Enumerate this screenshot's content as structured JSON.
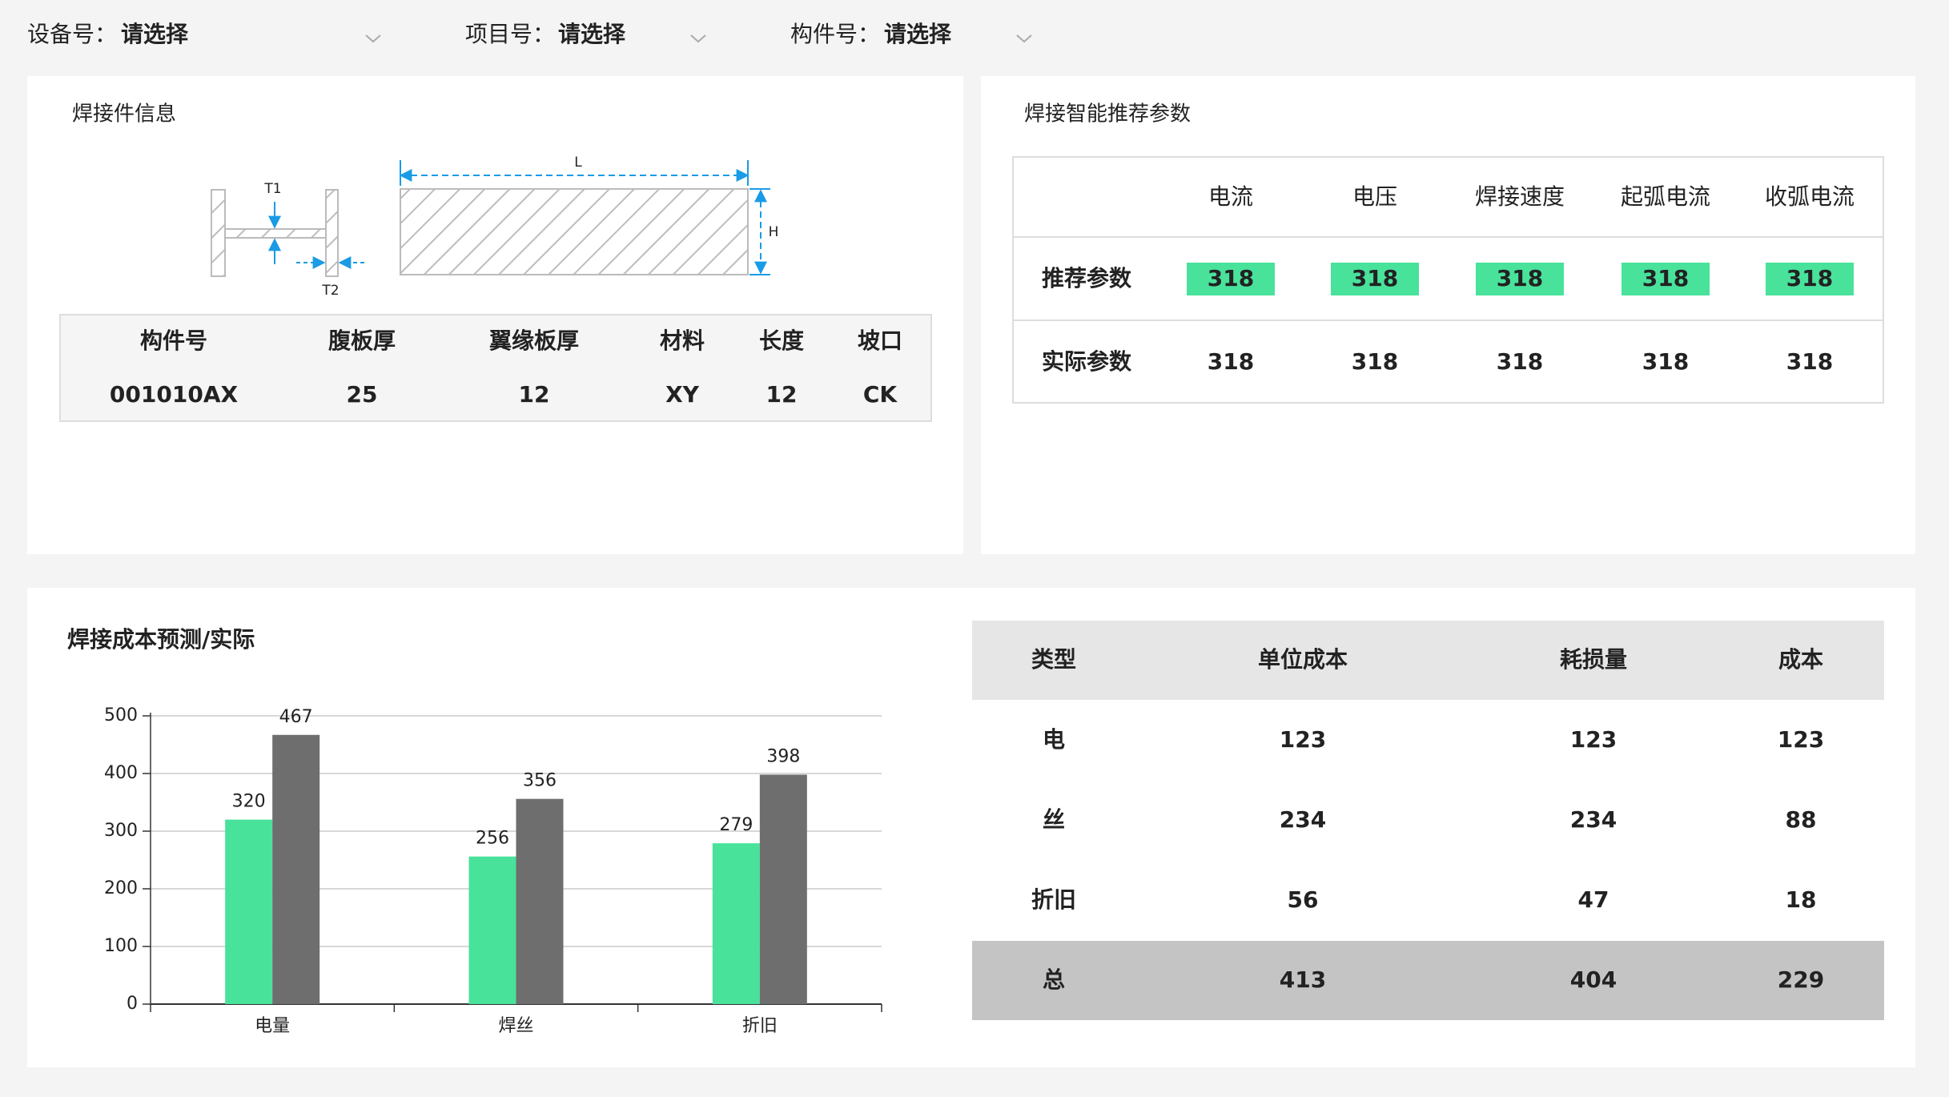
{
  "filters": [
    {
      "label": "设备号：",
      "placeholder": "请选择"
    },
    {
      "label": "项目号：",
      "placeholder": "请选择"
    },
    {
      "label": "构件号：",
      "placeholder": "请选择"
    }
  ],
  "welding_info": {
    "title": "焊接件信息",
    "diagram": {
      "l": "L",
      "h": "H",
      "t1": "T1",
      "t2": "T2"
    },
    "headers": [
      "构件号",
      "腹板厚",
      "翼缘板厚",
      "材料",
      "长度",
      "坡口"
    ],
    "row": [
      "001010AX",
      "25",
      "12",
      "XY",
      "12",
      "CK"
    ]
  },
  "recommend": {
    "title": "焊接智能推荐参数",
    "headers": [
      "电流",
      "电压",
      "焊接速度",
      "起弧电流",
      "收弧电流"
    ],
    "rows": [
      {
        "label": "推荐参数",
        "values": [
          "318",
          "318",
          "318",
          "318",
          "318"
        ]
      },
      {
        "label": "实际参数",
        "values": [
          "318",
          "318",
          "318",
          "318",
          "318"
        ]
      }
    ]
  },
  "chart_data": {
    "type": "bar",
    "title": "焊接成本预测/实际",
    "categories": [
      "电量",
      "焊丝",
      "折旧"
    ],
    "series": [
      {
        "color": "#48e29b",
        "values": [
          320,
          256,
          279
        ]
      },
      {
        "color": "#6e6e6e",
        "values": [
          467,
          356,
          398
        ]
      }
    ],
    "ylim": [
      0,
      500
    ],
    "yticks": [
      0,
      100,
      200,
      300,
      400,
      500
    ],
    "grid": true
  },
  "cost_table": {
    "headers": [
      "类型",
      "单位成本",
      "耗损量",
      "成本"
    ],
    "rows": [
      [
        "电",
        "123",
        "123",
        "123"
      ],
      [
        "丝",
        "234",
        "234",
        "88"
      ],
      [
        "折旧",
        "56",
        "47",
        "18"
      ],
      [
        "总",
        "413",
        "404",
        "229"
      ]
    ]
  }
}
